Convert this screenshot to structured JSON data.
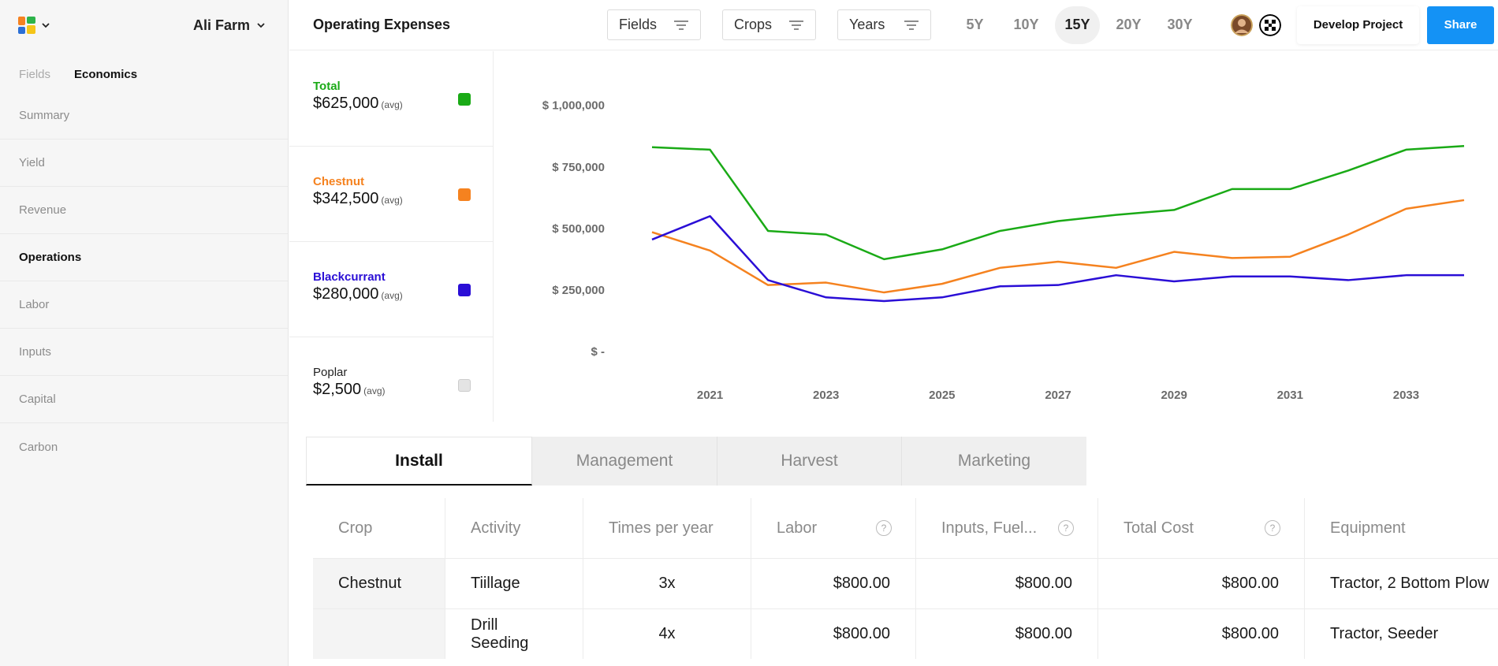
{
  "sidebar": {
    "farm_name": "Ali Farm",
    "tabs": [
      {
        "label": "Fields"
      },
      {
        "label": "Economics"
      }
    ],
    "items": [
      {
        "label": "Summary"
      },
      {
        "label": "Yield"
      },
      {
        "label": "Revenue"
      },
      {
        "label": "Operations"
      },
      {
        "label": "Labor"
      },
      {
        "label": "Inputs"
      },
      {
        "label": "Capital"
      },
      {
        "label": "Carbon"
      }
    ],
    "active_item": "Operations"
  },
  "header": {
    "title": "Operating Expenses",
    "filters": [
      {
        "label": "Fields"
      },
      {
        "label": "Crops"
      },
      {
        "label": "Years"
      }
    ],
    "periods": [
      "5Y",
      "10Y",
      "15Y",
      "20Y",
      "30Y"
    ],
    "active_period": "15Y",
    "develop_label": "Develop Project",
    "share_label": "Share"
  },
  "legend": [
    {
      "name": "Total",
      "value": "$625,000",
      "avg": "(avg)",
      "color": "#1aaa16"
    },
    {
      "name": "Chestnut",
      "value": "$342,500",
      "avg": "(avg)",
      "color": "#f5821f"
    },
    {
      "name": "Blackcurrant",
      "value": "$280,000",
      "avg": "(avg)",
      "color": "#2a0ed6"
    },
    {
      "name": "Poplar",
      "value": "$2,500",
      "avg": "(avg)",
      "color": "#e4e4e4"
    }
  ],
  "chart_data": {
    "type": "line",
    "x": [
      2020,
      2021,
      2022,
      2023,
      2024,
      2025,
      2026,
      2027,
      2028,
      2029,
      2030,
      2031,
      2032,
      2033,
      2034
    ],
    "x_tick_labels": [
      "2021",
      "2023",
      "2025",
      "2027",
      "2029",
      "2031",
      "2033"
    ],
    "y_tick_labels": [
      "$ 1,000,000",
      "$ 750,000",
      "$ 500,000",
      "$ 250,000",
      "$ -"
    ],
    "ylim": [
      0,
      1000000
    ],
    "series": [
      {
        "name": "Total",
        "color": "#1aaa16",
        "values": [
          830000,
          820000,
          490000,
          475000,
          375000,
          415000,
          490000,
          530000,
          555000,
          575000,
          660000,
          660000,
          735000,
          820000,
          835000
        ]
      },
      {
        "name": "Chestnut",
        "color": "#f5821f",
        "values": [
          485000,
          410000,
          270000,
          280000,
          240000,
          275000,
          340000,
          365000,
          340000,
          405000,
          380000,
          385000,
          475000,
          580000,
          615000
        ]
      },
      {
        "name": "Blackcurrant",
        "color": "#2a0ed6",
        "values": [
          455000,
          550000,
          290000,
          220000,
          205000,
          220000,
          265000,
          270000,
          310000,
          285000,
          305000,
          305000,
          290000,
          310000,
          310000
        ]
      }
    ]
  },
  "tabs": [
    {
      "label": "Install"
    },
    {
      "label": "Management"
    },
    {
      "label": "Harvest"
    },
    {
      "label": "Marketing"
    }
  ],
  "table": {
    "headers": [
      "Crop",
      "Activity",
      "Times per year",
      "Labor",
      "Inputs, Fuel...",
      "Total Cost",
      "Equipment"
    ],
    "help_glyph": "?",
    "rows": [
      {
        "crop": "Chestnut",
        "activity": "Tiillage",
        "times": "3x",
        "labor": "$800.00",
        "inputs": "$800.00",
        "total": "$800.00",
        "equipment": "Tractor, 2 Bottom Plow"
      },
      {
        "crop": "",
        "activity": "Drill Seeding",
        "times": "4x",
        "labor": "$800.00",
        "inputs": "$800.00",
        "total": "$800.00",
        "equipment": "Tractor, Seeder"
      }
    ]
  }
}
